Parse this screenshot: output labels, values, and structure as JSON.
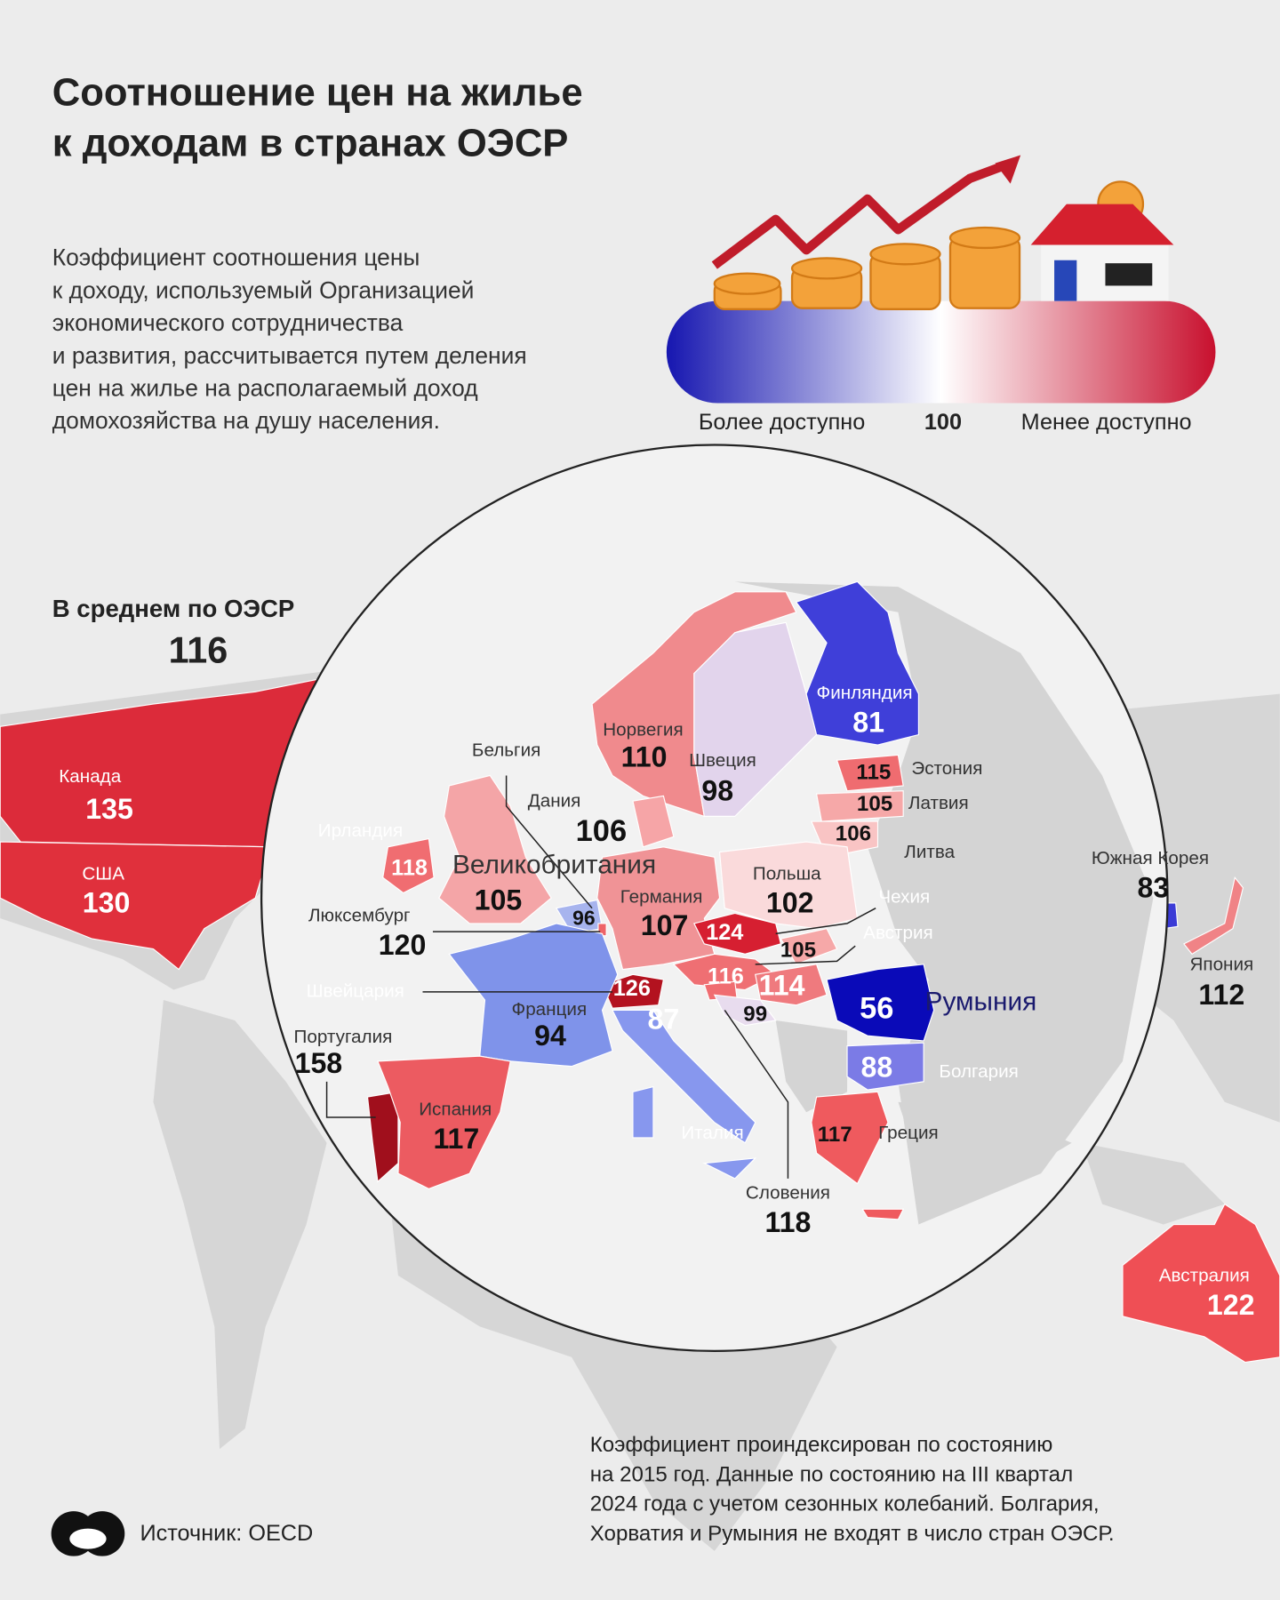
{
  "header": {
    "title": [
      "Соотношение цен на жилье",
      "к доходам в странах ОЭСР"
    ],
    "description": [
      "Коэффициент соотношения цены",
      "к доходу, используемый Организацией",
      "экономического сотрудничества",
      "и развития, рассчитывается путем деления",
      "цен на жилье на располагаемый доход",
      "домохозяйства на душу населения."
    ]
  },
  "scale": {
    "left": "Более доступно",
    "middle": 100,
    "right": "Менее доступно"
  },
  "average": {
    "label": "В среднем по ОЭСР",
    "value": 116
  },
  "countries": [
    {
      "name": "Канада",
      "value": 135,
      "color": "#dc2b3a"
    },
    {
      "name": "США",
      "value": 130,
      "color": "#e0303c"
    },
    {
      "name": "Норвегия",
      "value": 110,
      "color": "#f08a8d"
    },
    {
      "name": "Швеция",
      "value": 98,
      "color": "#e2d4ec"
    },
    {
      "name": "Финляндия",
      "value": 81,
      "color": "#3f3fd9"
    },
    {
      "name": "Эстония",
      "value": 115,
      "color": "#ef6c70"
    },
    {
      "name": "Латвия",
      "value": 105,
      "color": "#f6a8a8"
    },
    {
      "name": "Литва",
      "value": 106,
      "color": "#f9c4c4"
    },
    {
      "name": "Дания",
      "value": 106,
      "color": "#f6a5a7"
    },
    {
      "name": "Бельгия",
      "value": 96,
      "color": "#a7b4ee"
    },
    {
      "name": "Ирландия",
      "value": 118,
      "color": "#f06d71"
    },
    {
      "name": "Великобритания",
      "value": 105,
      "color": "#f4a5a7"
    },
    {
      "name": "Люксембург",
      "value": 120,
      "color": "#ee6367"
    },
    {
      "name": "Германия",
      "value": 107,
      "color": "#f09396"
    },
    {
      "name": "Польша",
      "value": 102,
      "color": "#fadadb"
    },
    {
      "name": "Чехия",
      "value": 124,
      "color": "#d61f31"
    },
    {
      "name": "Австрия",
      "value": 116,
      "color": "#ef6f73"
    },
    {
      "name": "Швейцария",
      "value": 126,
      "color": "#b3121f"
    },
    {
      "name": "Франция",
      "value": 94,
      "color": "#7f93ea"
    },
    {
      "name": "Румыния",
      "value": 56,
      "color": "#0a0ab8"
    },
    {
      "name": "Болгария",
      "value": 88,
      "color": "#7b7be6"
    },
    {
      "name": "Португалия",
      "value": 158,
      "color": "#a00f1c"
    },
    {
      "name": "Испания",
      "value": 117,
      "color": "#ec5b61"
    },
    {
      "name": "Италия",
      "value": 87,
      "color": "#8797ee"
    },
    {
      "name": "Словения",
      "value": 118,
      "color": "#f06d71"
    },
    {
      "name": "Греция",
      "value": 117,
      "color": "#ef5a5e"
    },
    {
      "name": "Южная Корея",
      "value": 83,
      "color": "#3b3bd6"
    },
    {
      "name": "Япония",
      "value": 112,
      "color": "#f08386"
    },
    {
      "name": "Австралия",
      "value": 122,
      "color": "#ef4f55"
    },
    {
      "name": null,
      "value": 105,
      "color": "#f6a8a8"
    },
    {
      "name": null,
      "value": 114,
      "color": "#ef7a7e"
    },
    {
      "name": null,
      "value": 99,
      "color": "#e8dcee"
    }
  ],
  "footnote": [
    "Коэффициент проиндексирован по состоянию",
    "на 2015 год. Данные по состоянию на III квартал",
    "2024 года с учетом сезонных колебаний. Болгария,",
    "Хорватия и Румыния не входят в число стран ОЭСР."
  ],
  "source": "Источник: OECD"
}
